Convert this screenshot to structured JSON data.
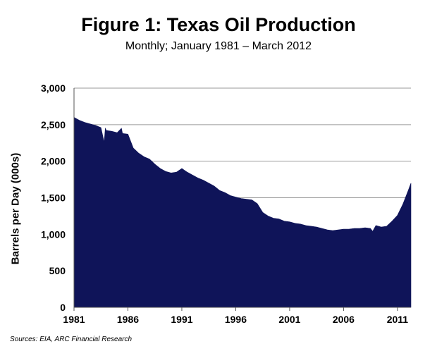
{
  "chart_data": {
    "type": "area",
    "title": "Figure 1: Texas Oil Production",
    "subtitle": "Monthly; January 1981 – March 2012",
    "xlabel": "",
    "ylabel": "Barrels per Day (000s)",
    "source": "Sources: EIA, ARC Financial Research",
    "ylim": [
      0,
      3000
    ],
    "xlim": [
      1981.0,
      2012.25
    ],
    "y_ticks": [
      "0",
      "500",
      "1,000",
      "1,500",
      "2,000",
      "2,500",
      "3,000"
    ],
    "y_tick_values": [
      0,
      500,
      1000,
      1500,
      2000,
      2500,
      3000
    ],
    "x_ticks": [
      "1981",
      "1986",
      "1991",
      "1996",
      "2001",
      "2006",
      "2011"
    ],
    "x_tick_values": [
      1981,
      1986,
      1991,
      1996,
      2001,
      2006,
      2011
    ],
    "grid": "horizontal",
    "legend": "none",
    "fill_color": "#0f1459",
    "x": [
      1981.0,
      1981.5,
      1982.0,
      1982.5,
      1983.0,
      1983.5,
      1983.8,
      1983.9,
      1984.0,
      1984.5,
      1985.0,
      1985.4,
      1985.5,
      1986.0,
      1986.5,
      1987.0,
      1987.5,
      1988.0,
      1988.5,
      1989.0,
      1989.5,
      1990.0,
      1990.5,
      1991.0,
      1991.5,
      1992.0,
      1992.5,
      1993.0,
      1993.5,
      1994.0,
      1994.5,
      1995.0,
      1995.5,
      1996.0,
      1996.5,
      1997.0,
      1997.5,
      1998.0,
      1998.5,
      1999.0,
      1999.5,
      2000.0,
      2000.5,
      2001.0,
      2001.5,
      2002.0,
      2002.5,
      2003.0,
      2003.5,
      2004.0,
      2004.5,
      2005.0,
      2005.5,
      2006.0,
      2006.5,
      2007.0,
      2007.5,
      2008.0,
      2008.5,
      2008.7,
      2009.0,
      2009.5,
      2010.0,
      2010.5,
      2011.0,
      2011.5,
      2012.0,
      2012.25
    ],
    "values": [
      2600,
      2560,
      2530,
      2510,
      2490,
      2460,
      2260,
      2450,
      2420,
      2410,
      2390,
      2450,
      2380,
      2370,
      2180,
      2110,
      2060,
      2030,
      1960,
      1900,
      1860,
      1840,
      1850,
      1900,
      1850,
      1810,
      1770,
      1740,
      1700,
      1660,
      1600,
      1570,
      1530,
      1510,
      1490,
      1480,
      1470,
      1420,
      1300,
      1250,
      1220,
      1210,
      1180,
      1170,
      1150,
      1140,
      1120,
      1110,
      1100,
      1080,
      1060,
      1050,
      1060,
      1070,
      1070,
      1080,
      1080,
      1090,
      1080,
      1040,
      1120,
      1100,
      1110,
      1180,
      1260,
      1410,
      1600,
      1700
    ]
  }
}
